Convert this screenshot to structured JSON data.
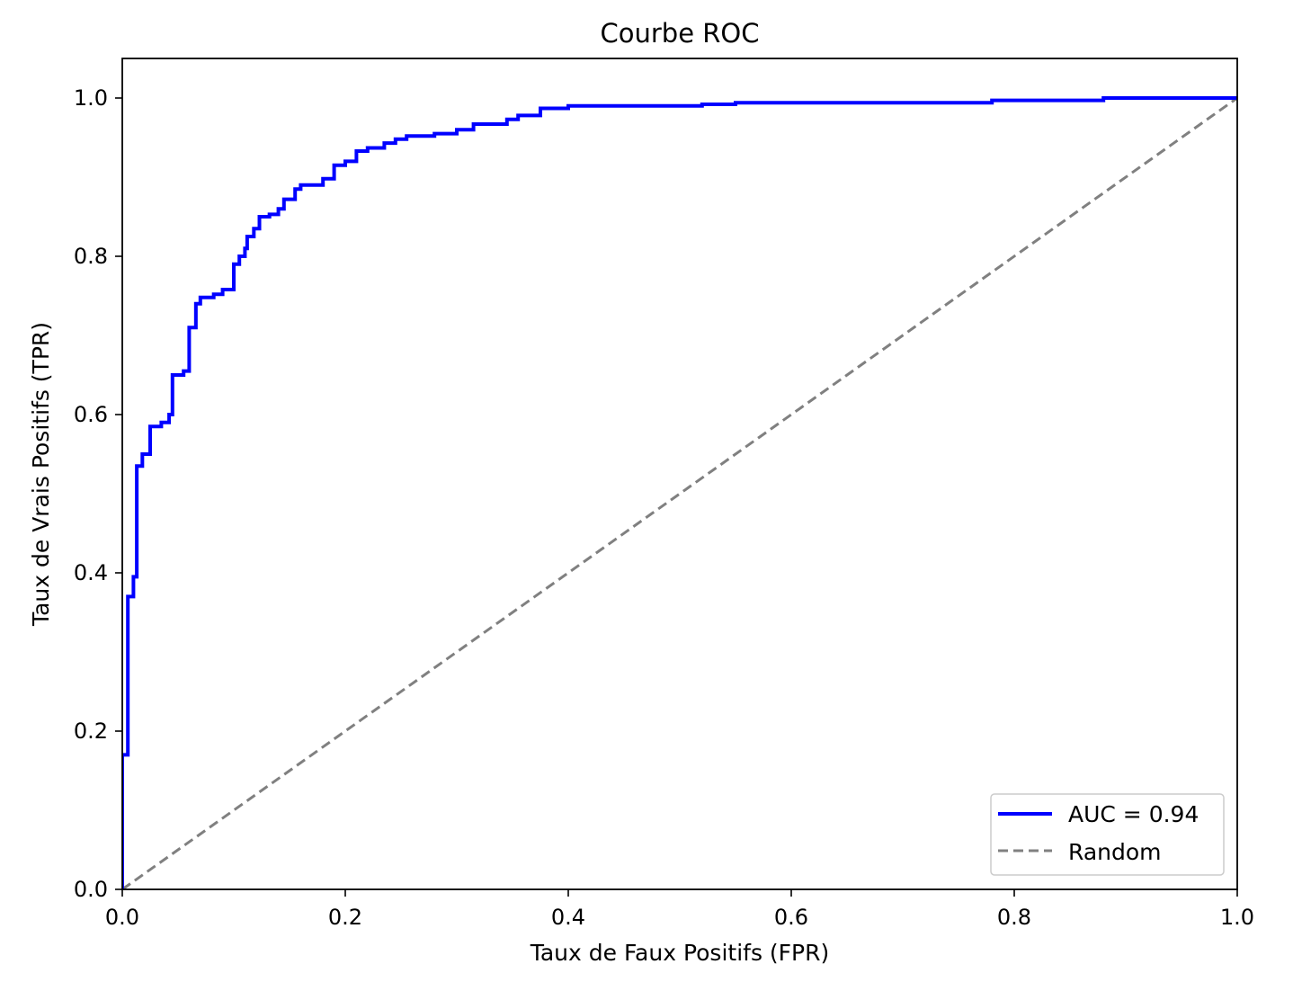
{
  "chart_data": {
    "type": "line",
    "title": "Courbe ROC",
    "xlabel": "Taux de Faux Positifs (FPR)",
    "ylabel": "Taux de Vrais Positifs (TPR)",
    "xlim": [
      0.0,
      1.0
    ],
    "ylim": [
      0.0,
      1.05
    ],
    "xticks": [
      "0.0",
      "0.2",
      "0.4",
      "0.6",
      "0.8",
      "1.0"
    ],
    "yticks": [
      "0.0",
      "0.2",
      "0.4",
      "0.6",
      "0.8",
      "1.0"
    ],
    "grid": false,
    "legend_position": "lower-right",
    "series": [
      {
        "name": "AUC = 0.94",
        "color": "#0000ff",
        "style": "solid",
        "step": true,
        "points": [
          [
            0.0,
            0.0
          ],
          [
            0.0,
            0.17
          ],
          [
            0.005,
            0.17
          ],
          [
            0.005,
            0.37
          ],
          [
            0.01,
            0.37
          ],
          [
            0.01,
            0.395
          ],
          [
            0.013,
            0.395
          ],
          [
            0.013,
            0.535
          ],
          [
            0.018,
            0.535
          ],
          [
            0.018,
            0.55
          ],
          [
            0.025,
            0.55
          ],
          [
            0.025,
            0.585
          ],
          [
            0.035,
            0.585
          ],
          [
            0.035,
            0.59
          ],
          [
            0.042,
            0.59
          ],
          [
            0.042,
            0.6
          ],
          [
            0.045,
            0.6
          ],
          [
            0.045,
            0.65
          ],
          [
            0.055,
            0.65
          ],
          [
            0.055,
            0.655
          ],
          [
            0.06,
            0.655
          ],
          [
            0.06,
            0.665
          ],
          [
            0.06,
            0.665
          ],
          [
            0.06,
            0.71
          ],
          [
            0.066,
            0.71
          ],
          [
            0.066,
            0.74
          ],
          [
            0.07,
            0.74
          ],
          [
            0.07,
            0.748
          ],
          [
            0.082,
            0.748
          ],
          [
            0.082,
            0.752
          ],
          [
            0.09,
            0.752
          ],
          [
            0.09,
            0.758
          ],
          [
            0.1,
            0.758
          ],
          [
            0.1,
            0.775
          ],
          [
            0.1,
            0.775
          ],
          [
            0.1,
            0.79
          ],
          [
            0.105,
            0.79
          ],
          [
            0.105,
            0.8
          ],
          [
            0.11,
            0.8
          ],
          [
            0.11,
            0.81
          ],
          [
            0.112,
            0.81
          ],
          [
            0.112,
            0.825
          ],
          [
            0.118,
            0.825
          ],
          [
            0.118,
            0.835
          ],
          [
            0.123,
            0.835
          ],
          [
            0.123,
            0.85
          ],
          [
            0.132,
            0.85
          ],
          [
            0.132,
            0.853
          ],
          [
            0.14,
            0.853
          ],
          [
            0.14,
            0.86
          ],
          [
            0.145,
            0.86
          ],
          [
            0.145,
            0.872
          ],
          [
            0.155,
            0.872
          ],
          [
            0.155,
            0.885
          ],
          [
            0.16,
            0.885
          ],
          [
            0.16,
            0.89
          ],
          [
            0.18,
            0.89
          ],
          [
            0.18,
            0.898
          ],
          [
            0.19,
            0.898
          ],
          [
            0.19,
            0.915
          ],
          [
            0.2,
            0.915
          ],
          [
            0.2,
            0.92
          ],
          [
            0.21,
            0.92
          ],
          [
            0.21,
            0.933
          ],
          [
            0.22,
            0.933
          ],
          [
            0.22,
            0.937
          ],
          [
            0.235,
            0.937
          ],
          [
            0.235,
            0.943
          ],
          [
            0.245,
            0.943
          ],
          [
            0.245,
            0.948
          ],
          [
            0.255,
            0.948
          ],
          [
            0.255,
            0.952
          ],
          [
            0.28,
            0.952
          ],
          [
            0.28,
            0.955
          ],
          [
            0.3,
            0.955
          ],
          [
            0.3,
            0.96
          ],
          [
            0.315,
            0.96
          ],
          [
            0.315,
            0.967
          ],
          [
            0.345,
            0.967
          ],
          [
            0.345,
            0.973
          ],
          [
            0.355,
            0.973
          ],
          [
            0.355,
            0.978
          ],
          [
            0.375,
            0.978
          ],
          [
            0.375,
            0.987
          ],
          [
            0.4,
            0.987
          ],
          [
            0.4,
            0.99
          ],
          [
            0.52,
            0.99
          ],
          [
            0.52,
            0.992
          ],
          [
            0.55,
            0.992
          ],
          [
            0.55,
            0.994
          ],
          [
            0.78,
            0.994
          ],
          [
            0.78,
            0.997
          ],
          [
            0.88,
            0.997
          ],
          [
            0.88,
            1.0
          ],
          [
            1.0,
            1.0
          ]
        ]
      },
      {
        "name": "Random",
        "color": "#808080",
        "style": "dashed",
        "step": false,
        "points": [
          [
            0.0,
            0.0
          ],
          [
            1.0,
            1.0
          ]
        ]
      }
    ]
  }
}
